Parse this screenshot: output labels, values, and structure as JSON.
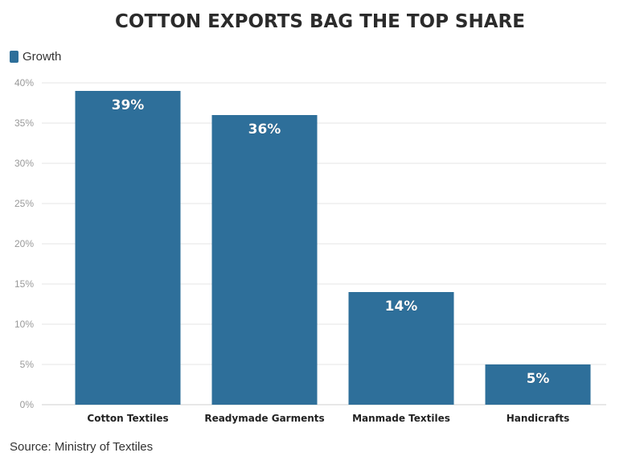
{
  "chart_data": {
    "type": "bar",
    "title": "COTTON EXPORTS BAG THE TOP SHARE",
    "categories": [
      "Cotton Textiles",
      "Readymade Garments",
      "Manmade Textiles",
      "Handicrafts"
    ],
    "series": [
      {
        "name": "Growth",
        "values": [
          39,
          36,
          14,
          5
        ],
        "labels": [
          "39%",
          "36%",
          "14%",
          "5%"
        ],
        "color": "#2e6f9a"
      }
    ],
    "ylim": [
      0,
      40
    ],
    "yticks": [
      0,
      5,
      10,
      15,
      20,
      25,
      30,
      35,
      40
    ],
    "ytick_labels": [
      "0%",
      "5%",
      "10%",
      "15%",
      "20%",
      "25%",
      "30%",
      "35%",
      "40%"
    ],
    "xlabel": "",
    "ylabel": "",
    "grid": true,
    "legend_position": "top-left"
  },
  "source": "Source: Ministry of Textiles"
}
